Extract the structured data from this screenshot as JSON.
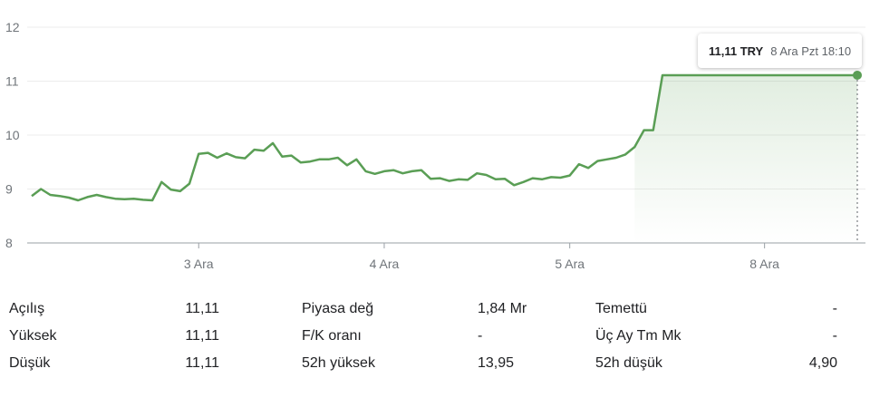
{
  "chart_data": {
    "type": "area",
    "y_ticks": [
      "8",
      "9",
      "10",
      "11",
      "12"
    ],
    "ylim": [
      8,
      12
    ],
    "x_ticks": [
      {
        "label": "3 Ara",
        "index": 18
      },
      {
        "label": "4 Ara",
        "index": 38
      },
      {
        "label": "5 Ara",
        "index": 58
      },
      {
        "label": "8 Ara",
        "index": 79
      }
    ],
    "values": [
      8.87,
      9.0,
      8.89,
      8.87,
      8.84,
      8.79,
      8.85,
      8.89,
      8.85,
      8.82,
      8.81,
      8.82,
      8.8,
      8.79,
      9.13,
      8.99,
      8.96,
      9.1,
      9.65,
      9.67,
      9.58,
      9.66,
      9.59,
      9.57,
      9.73,
      9.71,
      9.85,
      9.6,
      9.62,
      9.49,
      9.51,
      9.55,
      9.55,
      9.58,
      9.44,
      9.55,
      9.33,
      9.28,
      9.33,
      9.35,
      9.29,
      9.33,
      9.35,
      9.19,
      9.2,
      9.15,
      9.18,
      9.17,
      9.29,
      9.26,
      9.18,
      9.19,
      9.07,
      9.13,
      9.2,
      9.18,
      9.22,
      9.21,
      9.25,
      9.46,
      9.39,
      9.52,
      9.55,
      9.58,
      9.64,
      9.78,
      10.09,
      10.09,
      11.11,
      11.11,
      11.11,
      11.11,
      11.11,
      11.11,
      11.11,
      11.11,
      11.11,
      11.11,
      11.11,
      11.11,
      11.11,
      11.11,
      11.11,
      11.11,
      11.11,
      11.11,
      11.11,
      11.11,
      11.11,
      11.11
    ],
    "line_color": "#5a9e55",
    "grid": "horizontal"
  },
  "tooltip": {
    "price": "11,11 TRY",
    "time": "8 Ara Pzt 18:10"
  },
  "stats": {
    "rows": [
      {
        "l1": "Açılış",
        "v1": "11,11",
        "l2": "Piyasa değ",
        "v2": "1,84 Mr",
        "l3": "Temettü",
        "v3": "-"
      },
      {
        "l1": "Yüksek",
        "v1": "11,11",
        "l2": "F/K oranı",
        "v2": "-",
        "l3": "Üç Ay Tm Mk",
        "v3": "-"
      },
      {
        "l1": "Düşük",
        "v1": "11,11",
        "l2": "52h yüksek",
        "v2": "13,95",
        "l3": "52h düşük",
        "v3": "4,90"
      }
    ]
  }
}
